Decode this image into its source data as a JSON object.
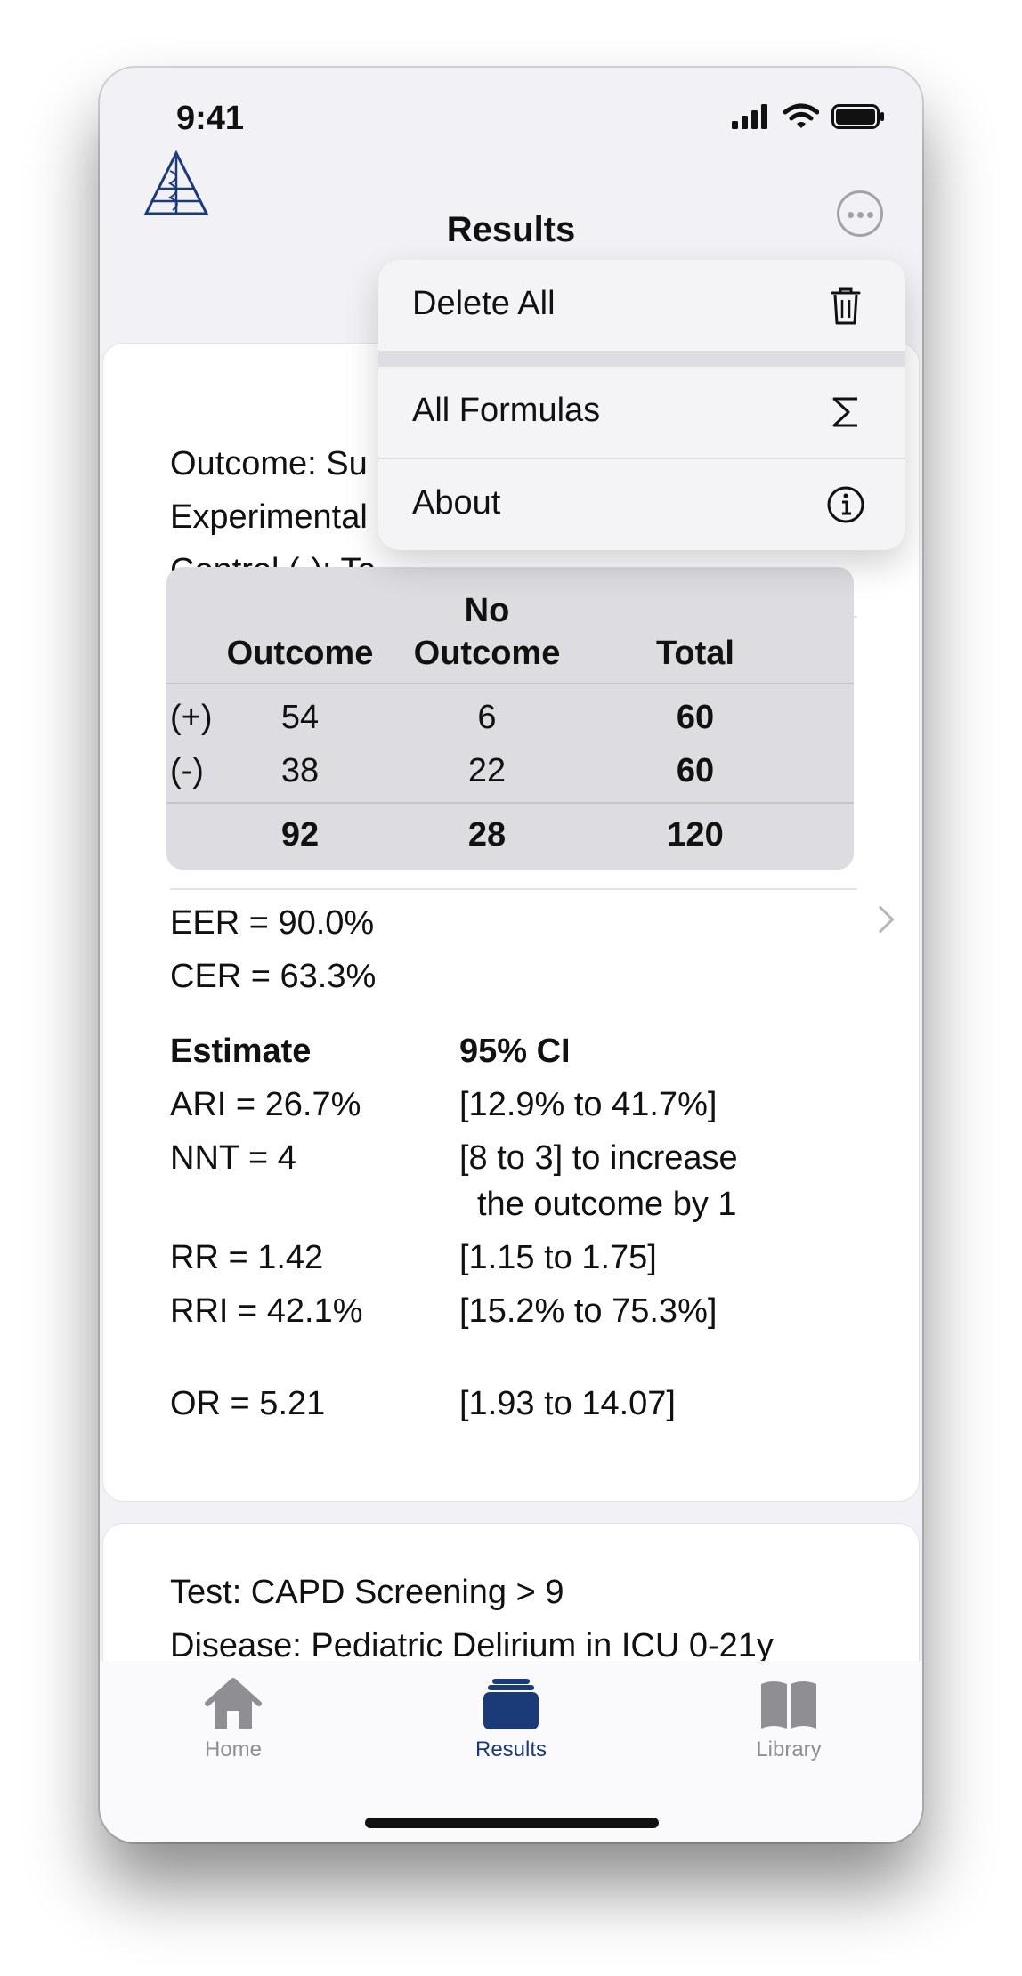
{
  "status": {
    "time": "9:41"
  },
  "nav": {
    "title": "Results"
  },
  "menu": {
    "items": [
      {
        "label": "Delete All",
        "icon": "trash-icon"
      },
      {
        "label": "All Formulas",
        "icon": "sigma-icon"
      },
      {
        "label": "About",
        "icon": "info-icon"
      }
    ]
  },
  "card1": {
    "header_lines": [
      "Outcome: Su",
      "Experimental",
      "Control (-): Ta"
    ],
    "table": {
      "col_headers": [
        "Outcome",
        "No\nOutcome",
        "Total"
      ],
      "col_header_no": "No",
      "col_header_outcome": "Outcome",
      "rows": [
        {
          "label": "(+)",
          "outcome": "54",
          "no_outcome": "6",
          "total": "60"
        },
        {
          "label": "(-)",
          "outcome": "38",
          "no_outcome": "22",
          "total": "60"
        }
      ],
      "totals": {
        "outcome": "92",
        "no_outcome": "28",
        "total": "120"
      }
    },
    "rates": {
      "eer": "EER = 90.0%",
      "cer": "CER = 63.3%"
    },
    "estimates": {
      "header_estimate": "Estimate",
      "header_ci": "95% CI",
      "rows": [
        {
          "estimate": "ARI = 26.7%",
          "ci": "[12.9% to 41.7%]"
        },
        {
          "estimate": "NNT = 4",
          "ci": "[8 to 3] to increase",
          "ci2": "the outcome by 1"
        },
        {
          "estimate": "RR = 1.42",
          "ci": "[1.15 to 1.75]"
        },
        {
          "estimate": "RRI = 42.1%",
          "ci": "[15.2% to 75.3%]"
        },
        {
          "estimate": "OR = 5.21",
          "ci": "[1.93 to 14.07]"
        }
      ]
    }
  },
  "card2": {
    "test": "Test: CAPD Screening > 9",
    "disease": "Disease: Pediatric Delirium in ICU 0-21y"
  },
  "tabs": [
    {
      "label": "Home",
      "icon": "home-icon"
    },
    {
      "label": "Results",
      "icon": "results-icon",
      "active": true
    },
    {
      "label": "Library",
      "icon": "book-icon"
    }
  ],
  "colors": {
    "accent": "#1a3a78",
    "inactive": "#8e8e93"
  }
}
